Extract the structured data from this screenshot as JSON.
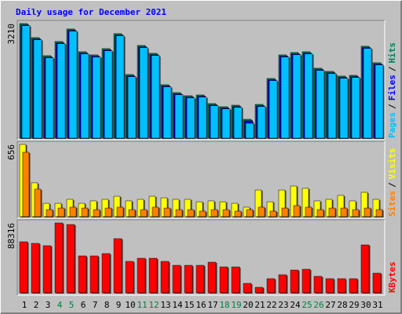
{
  "legend_separator": "/",
  "chart_data": [
    {
      "type": "bar",
      "title": "Daily usage for December 2021",
      "ylim": [
        0,
        3210
      ],
      "yticks": [
        3210
      ],
      "series": [
        {
          "name": "Hits",
          "color": "#00805c",
          "values": [
            3210,
            2816,
            2310,
            2706,
            3058,
            2420,
            2332,
            2508,
            2926,
            1782,
            2596,
            2376,
            1496,
            1276,
            1188,
            1210,
            968,
            880,
            924,
            528,
            946,
            1672,
            2332,
            2398,
            2420,
            1958,
            1870,
            1738,
            1760,
            2574,
            2112
          ]
        },
        {
          "name": "Files",
          "color": "#0000ff",
          "values": [
            3170,
            2776,
            2270,
            2666,
            3018,
            2380,
            2292,
            2468,
            2886,
            1742,
            2556,
            2336,
            1456,
            1236,
            1148,
            1170,
            928,
            840,
            884,
            488,
            906,
            1632,
            2292,
            2358,
            2380,
            1918,
            1830,
            1698,
            1720,
            2534,
            2072
          ]
        },
        {
          "name": "Pages",
          "color": "#00c0ff",
          "values": [
            3150,
            2756,
            2250,
            2646,
            2998,
            2360,
            2272,
            2448,
            2866,
            1722,
            2536,
            2316,
            1436,
            1216,
            1128,
            1150,
            908,
            820,
            864,
            418,
            886,
            1612,
            2272,
            2338,
            2360,
            1898,
            1810,
            1678,
            1700,
            2514,
            2052
          ]
        }
      ]
    },
    {
      "type": "bar",
      "ylim": [
        0,
        656
      ],
      "yticks": [
        656
      ],
      "series": [
        {
          "name": "Visits",
          "color": "#ffff00",
          "values": [
            656,
            307,
            121,
            121,
            157,
            121,
            143,
            157,
            185,
            143,
            157,
            185,
            171,
            157,
            157,
            135,
            143,
            135,
            121,
            86,
            242,
            135,
            242,
            278,
            257,
            143,
            157,
            193,
            143,
            221,
            157
          ]
        },
        {
          "name": "Sites",
          "color": "#ff8000",
          "values": [
            585,
            250,
            64,
            78,
            86,
            78,
            64,
            78,
            86,
            64,
            64,
            86,
            78,
            64,
            64,
            50,
            64,
            64,
            50,
            64,
            86,
            50,
            78,
            100,
            86,
            64,
            78,
            78,
            64,
            78,
            64
          ]
        }
      ]
    },
    {
      "type": "bar",
      "ylim": [
        0,
        88316
      ],
      "yticks": [
        88316
      ],
      "categories": [
        "1",
        "2",
        "3",
        "4",
        "5",
        "6",
        "7",
        "8",
        "9",
        "10",
        "11",
        "12",
        "13",
        "14",
        "15",
        "16",
        "17",
        "18",
        "19",
        "20",
        "21",
        "22",
        "23",
        "24",
        "25",
        "26",
        "27",
        "28",
        "29",
        "30",
        "31"
      ],
      "category_colors": [
        "#000000",
        "#000000",
        "#000000",
        "#008040",
        "#008040",
        "#000000",
        "#000000",
        "#000000",
        "#000000",
        "#000000",
        "#008040",
        "#008040",
        "#000000",
        "#000000",
        "#000000",
        "#000000",
        "#000000",
        "#008040",
        "#008040",
        "#000000",
        "#000000",
        "#000000",
        "#000000",
        "#000000",
        "#008040",
        "#008040",
        "#000000",
        "#000000",
        "#000000",
        "#000000",
        "#000000"
      ],
      "series": [
        {
          "name": "KBytes",
          "color": "#ff0000",
          "values": [
            64480,
            62496,
            59520,
            88316,
            86304,
            46624,
            46624,
            49600,
            68448,
            39680,
            43648,
            43648,
            39680,
            34720,
            34720,
            34720,
            38688,
            32736,
            32736,
            11904,
            6944,
            17856,
            22816,
            28768,
            29760,
            20832,
            17856,
            17856,
            17856,
            60512,
            24800
          ]
        }
      ]
    }
  ]
}
